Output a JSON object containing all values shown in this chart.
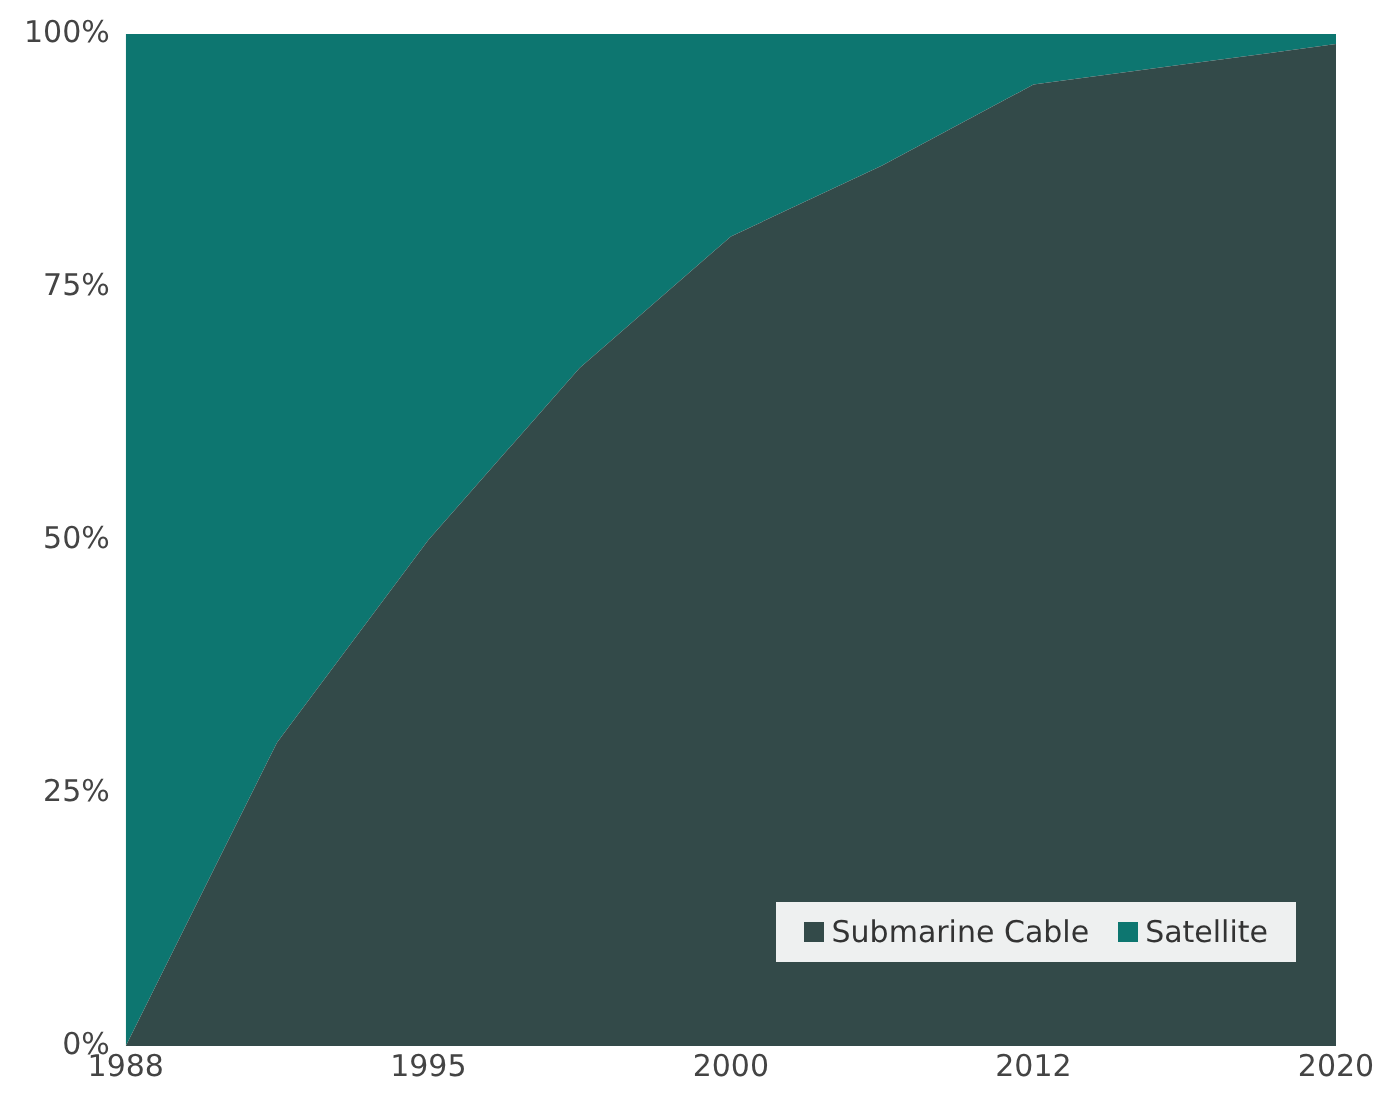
{
  "chart_data": {
    "type": "area",
    "stacked": true,
    "categories": [
      "1988",
      null,
      "1995",
      null,
      "2000",
      null,
      "2012",
      null,
      "2020"
    ],
    "series": [
      {
        "name": "Submarine Cable",
        "color": "#334a49",
        "values": [
          0,
          30,
          50,
          67,
          80,
          87,
          95,
          97,
          99
        ]
      },
      {
        "name": "Satellite",
        "color": "#0d7670",
        "values": [
          100,
          70,
          50,
          33,
          20,
          13,
          5,
          3,
          1
        ]
      }
    ],
    "ylim": [
      0,
      100
    ],
    "yticks": [
      {
        "value": 0,
        "label": "0%"
      },
      {
        "value": 25,
        "label": "25%"
      },
      {
        "value": 50,
        "label": "50%"
      },
      {
        "value": 75,
        "label": "75%"
      },
      {
        "value": 100,
        "label": "100%"
      }
    ],
    "grid": false,
    "legend": "bottom right"
  }
}
